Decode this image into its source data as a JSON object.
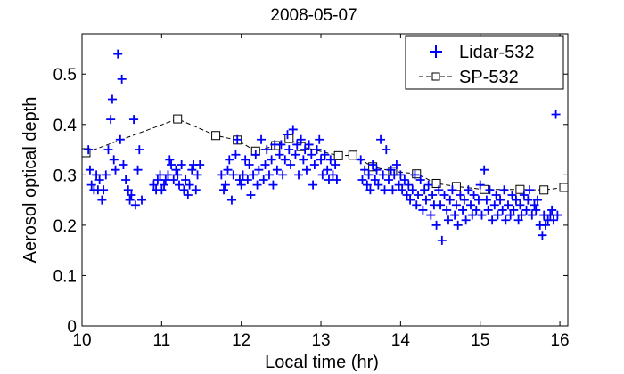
{
  "chart_data": {
    "type": "scatter",
    "title": "2008-05-07",
    "xlabel": "Local time (hr)",
    "ylabel": "Aerosol optical depth",
    "xlim": [
      10,
      16.1
    ],
    "ylim": [
      0,
      0.58
    ],
    "x_ticks": [
      "10",
      "11",
      "12",
      "13",
      "14",
      "15",
      "16"
    ],
    "y_ticks": [
      "0",
      "0.1",
      "0.2",
      "0.3",
      "0.4",
      "0.5"
    ],
    "legend": {
      "position": "top-right",
      "entries": [
        "Lidar-532",
        "SP-532"
      ]
    },
    "colors": {
      "lidar": "#0000ff",
      "sp": "#000000"
    },
    "series": [
      {
        "name": "Lidar-532",
        "marker": "plus",
        "points": [
          [
            10.08,
            0.35
          ],
          [
            10.1,
            0.31
          ],
          [
            10.12,
            0.28
          ],
          [
            10.15,
            0.27
          ],
          [
            10.18,
            0.3
          ],
          [
            10.2,
            0.27
          ],
          [
            10.22,
            0.29
          ],
          [
            10.25,
            0.25
          ],
          [
            10.27,
            0.27
          ],
          [
            10.3,
            0.3
          ],
          [
            10.33,
            0.35
          ],
          [
            10.36,
            0.41
          ],
          [
            10.38,
            0.45
          ],
          [
            10.4,
            0.33
          ],
          [
            10.42,
            0.31
          ],
          [
            10.45,
            0.54
          ],
          [
            10.48,
            0.37
          ],
          [
            10.5,
            0.49
          ],
          [
            10.52,
            0.32
          ],
          [
            10.55,
            0.29
          ],
          [
            10.58,
            0.27
          ],
          [
            10.6,
            0.25
          ],
          [
            10.62,
            0.26
          ],
          [
            10.65,
            0.41
          ],
          [
            10.67,
            0.24
          ],
          [
            10.7,
            0.31
          ],
          [
            10.72,
            0.35
          ],
          [
            10.75,
            0.25
          ],
          [
            10.9,
            0.28
          ],
          [
            10.93,
            0.27
          ],
          [
            10.95,
            0.29
          ],
          [
            10.98,
            0.3
          ],
          [
            11.0,
            0.27
          ],
          [
            11.03,
            0.28
          ],
          [
            11.05,
            0.29
          ],
          [
            11.08,
            0.3
          ],
          [
            11.1,
            0.33
          ],
          [
            11.12,
            0.32
          ],
          [
            11.15,
            0.29
          ],
          [
            11.18,
            0.31
          ],
          [
            11.2,
            0.3
          ],
          [
            11.22,
            0.28
          ],
          [
            11.25,
            0.32
          ],
          [
            11.28,
            0.27
          ],
          [
            11.3,
            0.29
          ],
          [
            11.33,
            0.26
          ],
          [
            11.35,
            0.28
          ],
          [
            11.38,
            0.31
          ],
          [
            11.4,
            0.32
          ],
          [
            11.43,
            0.27
          ],
          [
            11.45,
            0.3
          ],
          [
            11.48,
            0.32
          ],
          [
            11.75,
            0.3
          ],
          [
            11.78,
            0.27
          ],
          [
            11.8,
            0.28
          ],
          [
            11.83,
            0.31
          ],
          [
            11.85,
            0.33
          ],
          [
            11.88,
            0.25
          ],
          [
            11.9,
            0.3
          ],
          [
            11.93,
            0.34
          ],
          [
            11.95,
            0.37
          ],
          [
            11.98,
            0.29
          ],
          [
            12.0,
            0.28
          ],
          [
            12.02,
            0.3
          ],
          [
            12.05,
            0.33
          ],
          [
            12.08,
            0.29
          ],
          [
            12.1,
            0.32
          ],
          [
            12.12,
            0.26
          ],
          [
            12.15,
            0.3
          ],
          [
            12.18,
            0.34
          ],
          [
            12.2,
            0.28
          ],
          [
            12.22,
            0.31
          ],
          [
            12.25,
            0.37
          ],
          [
            12.28,
            0.29
          ],
          [
            12.3,
            0.32
          ],
          [
            12.32,
            0.35
          ],
          [
            12.35,
            0.3
          ],
          [
            12.38,
            0.33
          ],
          [
            12.4,
            0.28
          ],
          [
            12.42,
            0.36
          ],
          [
            12.45,
            0.31
          ],
          [
            12.48,
            0.34
          ],
          [
            12.5,
            0.36
          ],
          [
            12.52,
            0.3
          ],
          [
            12.55,
            0.33
          ],
          [
            12.58,
            0.38
          ],
          [
            12.6,
            0.35
          ],
          [
            12.62,
            0.32
          ],
          [
            12.65,
            0.39
          ],
          [
            12.68,
            0.34
          ],
          [
            12.7,
            0.36
          ],
          [
            12.72,
            0.3
          ],
          [
            12.75,
            0.37
          ],
          [
            12.78,
            0.33
          ],
          [
            12.8,
            0.35
          ],
          [
            12.82,
            0.31
          ],
          [
            12.85,
            0.36
          ],
          [
            12.88,
            0.34
          ],
          [
            12.9,
            0.28
          ],
          [
            12.92,
            0.32
          ],
          [
            12.95,
            0.35
          ],
          [
            12.98,
            0.37
          ],
          [
            13.0,
            0.33
          ],
          [
            13.02,
            0.3
          ],
          [
            13.05,
            0.34
          ],
          [
            13.08,
            0.31
          ],
          [
            13.1,
            0.29
          ],
          [
            13.12,
            0.33
          ],
          [
            13.15,
            0.3
          ],
          [
            13.18,
            0.32
          ],
          [
            13.2,
            0.29
          ],
          [
            13.5,
            0.33
          ],
          [
            13.52,
            0.29
          ],
          [
            13.55,
            0.31
          ],
          [
            13.58,
            0.28
          ],
          [
            13.6,
            0.3
          ],
          [
            13.62,
            0.27
          ],
          [
            13.65,
            0.32
          ],
          [
            13.68,
            0.29
          ],
          [
            13.7,
            0.31
          ],
          [
            13.72,
            0.28
          ],
          [
            13.75,
            0.37
          ],
          [
            13.78,
            0.3
          ],
          [
            13.8,
            0.27
          ],
          [
            13.82,
            0.35
          ],
          [
            13.85,
            0.29
          ],
          [
            13.88,
            0.31
          ],
          [
            13.9,
            0.27
          ],
          [
            13.92,
            0.3
          ],
          [
            13.95,
            0.32
          ],
          [
            13.98,
            0.28
          ],
          [
            14.0,
            0.3
          ],
          [
            14.02,
            0.27
          ],
          [
            14.05,
            0.29
          ],
          [
            14.08,
            0.26
          ],
          [
            14.1,
            0.28
          ],
          [
            14.12,
            0.25
          ],
          [
            14.15,
            0.27
          ],
          [
            14.18,
            0.3
          ],
          [
            14.2,
            0.24
          ],
          [
            14.22,
            0.26
          ],
          [
            14.25,
            0.29
          ],
          [
            14.28,
            0.23
          ],
          [
            14.3,
            0.27
          ],
          [
            14.32,
            0.25
          ],
          [
            14.35,
            0.28
          ],
          [
            14.38,
            0.22
          ],
          [
            14.4,
            0.26
          ],
          [
            14.42,
            0.24
          ],
          [
            14.45,
            0.2
          ],
          [
            14.48,
            0.27
          ],
          [
            14.5,
            0.24
          ],
          [
            14.52,
            0.17
          ],
          [
            14.55,
            0.26
          ],
          [
            14.58,
            0.23
          ],
          [
            14.6,
            0.21
          ],
          [
            14.62,
            0.25
          ],
          [
            14.65,
            0.27
          ],
          [
            14.68,
            0.22
          ],
          [
            14.7,
            0.24
          ],
          [
            14.72,
            0.2
          ],
          [
            14.75,
            0.26
          ],
          [
            14.78,
            0.23
          ],
          [
            14.8,
            0.25
          ],
          [
            14.82,
            0.21
          ],
          [
            14.85,
            0.27
          ],
          [
            14.88,
            0.24
          ],
          [
            14.9,
            0.22
          ],
          [
            14.92,
            0.26
          ],
          [
            14.95,
            0.23
          ],
          [
            14.98,
            0.25
          ],
          [
            15.0,
            0.28
          ],
          [
            15.02,
            0.22
          ],
          [
            15.05,
            0.31
          ],
          [
            15.08,
            0.25
          ],
          [
            15.1,
            0.23
          ],
          [
            15.12,
            0.27
          ],
          [
            15.15,
            0.21
          ],
          [
            15.18,
            0.24
          ],
          [
            15.2,
            0.26
          ],
          [
            15.22,
            0.22
          ],
          [
            15.25,
            0.25
          ],
          [
            15.28,
            0.23
          ],
          [
            15.3,
            0.27
          ],
          [
            15.32,
            0.21
          ],
          [
            15.35,
            0.24
          ],
          [
            15.38,
            0.22
          ],
          [
            15.4,
            0.26
          ],
          [
            15.42,
            0.23
          ],
          [
            15.45,
            0.25
          ],
          [
            15.48,
            0.21
          ],
          [
            15.5,
            0.24
          ],
          [
            15.52,
            0.22
          ],
          [
            15.55,
            0.26
          ],
          [
            15.58,
            0.23
          ],
          [
            15.6,
            0.25
          ],
          [
            15.62,
            0.27
          ],
          [
            15.65,
            0.22
          ],
          [
            15.68,
            0.24
          ],
          [
            15.7,
            0.23
          ],
          [
            15.72,
            0.25
          ],
          [
            15.75,
            0.2
          ],
          [
            15.78,
            0.18
          ],
          [
            15.8,
            0.22
          ],
          [
            15.82,
            0.2
          ],
          [
            15.85,
            0.21
          ],
          [
            15.88,
            0.22
          ],
          [
            15.9,
            0.23
          ],
          [
            15.92,
            0.21
          ],
          [
            15.95,
            0.42
          ],
          [
            15.97,
            0.22
          ]
        ]
      },
      {
        "name": "SP-532",
        "marker": "square",
        "line": "dashed",
        "points": [
          [
            10.05,
            0.344
          ],
          [
            11.2,
            0.411
          ],
          [
            11.68,
            0.378
          ],
          [
            11.95,
            0.369
          ],
          [
            12.18,
            0.347
          ],
          [
            12.43,
            0.358
          ],
          [
            12.6,
            0.372
          ],
          [
            12.75,
            0.356
          ],
          [
            13.22,
            0.338
          ],
          [
            13.4,
            0.339
          ],
          [
            13.65,
            0.316
          ],
          [
            13.9,
            0.307
          ],
          [
            14.2,
            0.302
          ],
          [
            14.45,
            0.283
          ],
          [
            14.7,
            0.277
          ],
          [
            15.05,
            0.271
          ],
          [
            15.5,
            0.271
          ],
          [
            15.8,
            0.27
          ],
          [
            16.05,
            0.275
          ]
        ]
      }
    ]
  }
}
